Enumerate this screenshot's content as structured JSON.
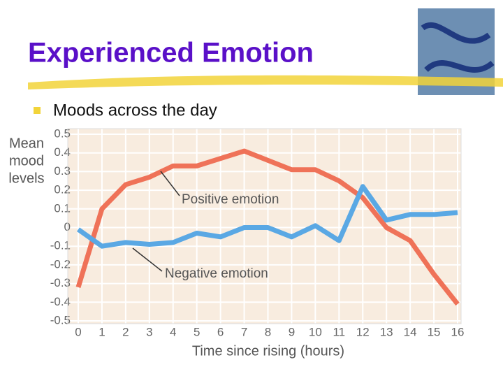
{
  "title": "Experienced Emotion",
  "bullet": "Moods across the day",
  "chart_data": {
    "type": "line",
    "y_label": [
      "Mean",
      "mood",
      "levels"
    ],
    "x_label": "Time since rising (hours)",
    "x": [
      0,
      1,
      2,
      3,
      4,
      5,
      6,
      7,
      8,
      9,
      10,
      11,
      12,
      13,
      14,
      15,
      16
    ],
    "xlim": [
      0,
      16
    ],
    "xticks": [
      0,
      1,
      2,
      3,
      4,
      5,
      6,
      7,
      8,
      9,
      10,
      11,
      12,
      13,
      14,
      15,
      16
    ],
    "ylim": [
      -0.5,
      0.5
    ],
    "yticks": [
      0.5,
      0.4,
      0.3,
      0.2,
      0.1,
      0,
      -0.1,
      -0.2,
      -0.3,
      -0.4,
      -0.5
    ],
    "grid": true,
    "series": [
      {
        "name": "Positive emotion",
        "color": "#ef7258",
        "values": [
          -0.32,
          0.1,
          0.23,
          0.27,
          0.33,
          0.33,
          0.37,
          0.41,
          0.36,
          0.31,
          0.31,
          0.25,
          0.16,
          0.0,
          -0.07,
          -0.25,
          -0.41
        ]
      },
      {
        "name": "Negative emotion",
        "color": "#5aa8e4",
        "values": [
          -0.01,
          -0.1,
          -0.08,
          -0.09,
          -0.08,
          -0.03,
          -0.05,
          0.0,
          0.0,
          -0.05,
          0.01,
          -0.07,
          0.22,
          0.04,
          0.07,
          0.07,
          0.08
        ]
      }
    ]
  }
}
